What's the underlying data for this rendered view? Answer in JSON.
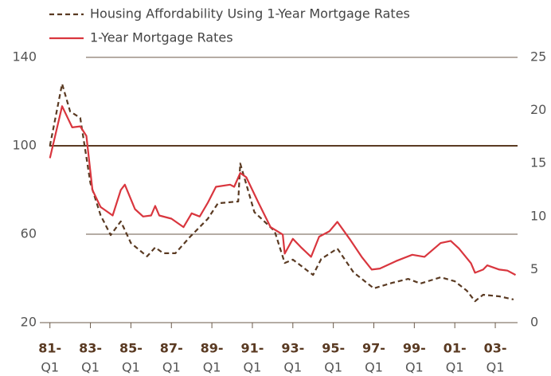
{
  "chart_data": {
    "type": "line",
    "xlim": [
      1980.5,
      2004.1
    ],
    "xticks": [
      {
        "value": 1981,
        "label": "81-",
        "sublabel": "Q1"
      },
      {
        "value": 1983,
        "label": "83-",
        "sublabel": "Q1"
      },
      {
        "value": 1985,
        "label": "85-",
        "sublabel": "Q1"
      },
      {
        "value": 1987,
        "label": "87-",
        "sublabel": "Q1"
      },
      {
        "value": 1989,
        "label": "89-",
        "sublabel": "Q1"
      },
      {
        "value": 1991,
        "label": "91-",
        "sublabel": "Q1"
      },
      {
        "value": 1993,
        "label": "93-",
        "sublabel": "Q1"
      },
      {
        "value": 1995,
        "label": "95-",
        "sublabel": "Q1"
      },
      {
        "value": 1997,
        "label": "97-",
        "sublabel": "Q1"
      },
      {
        "value": 1999,
        "label": "99-",
        "sublabel": "Q1"
      },
      {
        "value": 2001,
        "label": "01-",
        "sublabel": "Q1"
      },
      {
        "value": 2003,
        "label": "03-",
        "sublabel": "Q1"
      }
    ],
    "ylim": [
      20,
      140
    ],
    "yticks": [
      20,
      60,
      100,
      140
    ],
    "y2lim": [
      0,
      25
    ],
    "y2ticks": [
      0,
      5,
      10,
      15,
      20,
      25
    ],
    "reference_line": 100,
    "grid": true,
    "legend": "top-left",
    "series": [
      {
        "name": "Housing Affordability Using 1-Year Mortgage Rates",
        "color": "#5a3a22",
        "dashed": true,
        "axis": "y",
        "x": [
          1981.0,
          1981.6,
          1982.0,
          1982.5,
          1983.0,
          1983.5,
          1984.0,
          1984.5,
          1985.0,
          1985.8,
          1986.2,
          1986.6,
          1987.2,
          1987.9,
          1988.8,
          1989.3,
          1990.3,
          1990.4,
          1991.1,
          1992.1,
          1992.6,
          1993.0,
          1994.0,
          1994.4,
          1995.2,
          1996.0,
          1997.0,
          1997.9,
          1998.7,
          1999.3,
          2000.3,
          2001.0,
          2001.6,
          2002.0,
          2002.4,
          2003.2,
          2003.9
        ],
        "values": [
          100,
          128,
          115.5,
          112.6,
          83,
          68.6,
          59.6,
          65.8,
          56,
          50,
          54,
          51.4,
          51.4,
          58.6,
          67,
          74,
          74.8,
          92,
          70,
          61.4,
          47,
          48.5,
          41.6,
          48.8,
          53.5,
          42.7,
          35.5,
          38,
          39.8,
          37.7,
          40.5,
          38.7,
          34.4,
          29.7,
          32.6,
          31.9,
          30.5
        ]
      },
      {
        "name": "1-Year Mortgage Rates",
        "color": "#d9363e",
        "dashed": false,
        "axis": "y2",
        "x": [
          1981.0,
          1981.6,
          1982.1,
          1982.5,
          1982.8,
          1983.1,
          1983.5,
          1984.1,
          1984.5,
          1984.7,
          1985.2,
          1985.6,
          1986.0,
          1986.2,
          1986.4,
          1987.0,
          1987.6,
          1988.0,
          1988.4,
          1988.8,
          1989.2,
          1989.9,
          1990.1,
          1990.4,
          1990.7,
          1991.3,
          1991.9,
          1992.5,
          1992.6,
          1993.0,
          1993.4,
          1993.9,
          1994.3,
          1994.8,
          1995.2,
          1995.8,
          1996.4,
          1996.9,
          1997.3,
          1998.1,
          1998.9,
          1999.5,
          2000.3,
          2000.8,
          2001.2,
          2001.8,
          2002.0,
          2002.4,
          2002.6,
          2003.2,
          2003.6,
          2004.0
        ],
        "values": [
          15.5,
          20.4,
          18.4,
          18.5,
          17.6,
          12.5,
          10.9,
          10.1,
          12.5,
          13.0,
          10.7,
          10.0,
          10.1,
          11.0,
          10.1,
          9.8,
          9.0,
          10.3,
          10.0,
          11.3,
          12.8,
          13.0,
          12.8,
          14.1,
          13.7,
          11.3,
          9.0,
          8.3,
          6.5,
          7.9,
          7.1,
          6.2,
          8.1,
          8.6,
          9.5,
          7.9,
          6.2,
          5.0,
          5.1,
          5.8,
          6.4,
          6.2,
          7.5,
          7.7,
          7.0,
          5.6,
          4.7,
          5.0,
          5.4,
          5.0,
          4.9,
          4.5
        ]
      }
    ]
  }
}
